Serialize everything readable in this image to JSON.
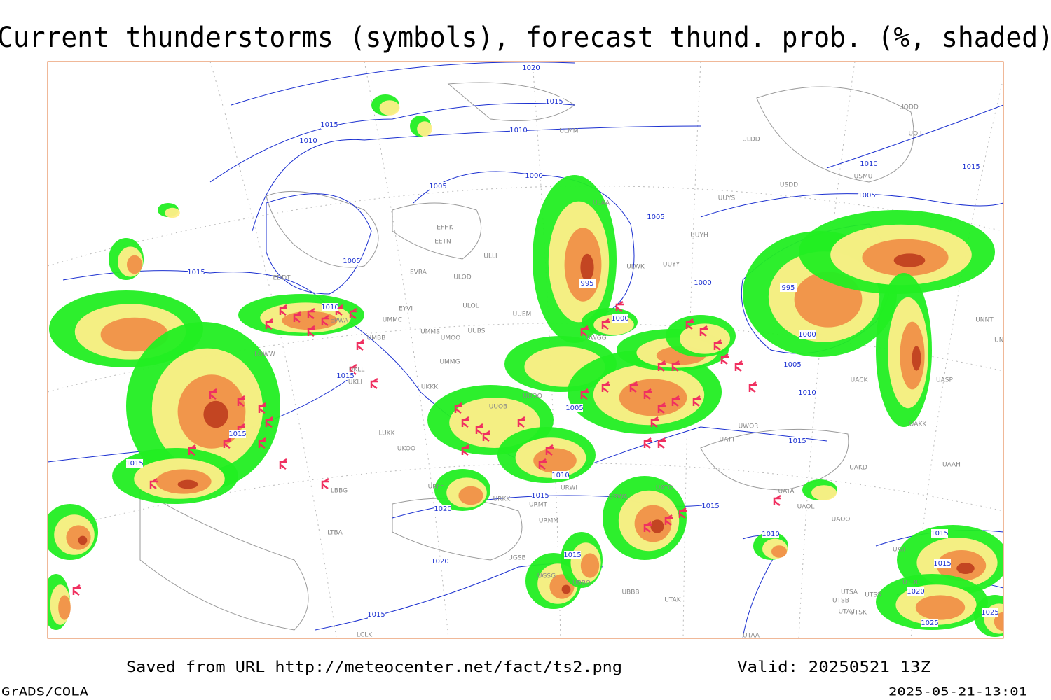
{
  "title": "Current thunderstorms (symbols), forecast thund. prob. (%, shaded)",
  "isobar_labels": [
    1020,
    1015,
    1015,
    1010,
    1010,
    1005,
    1000,
    1005,
    1005,
    1010,
    1015,
    1015,
    1005,
    995,
    1000,
    995,
    1000,
    1010,
    1000,
    1005,
    1010,
    1015,
    1005,
    1015,
    1015,
    1015,
    1010,
    1015,
    1020,
    1015,
    1010,
    1015,
    1020,
    1015,
    1015,
    1015,
    1020,
    1025,
    1025
  ],
  "stations": [
    "ULMM",
    "ULDD",
    "UODD",
    "UOII",
    "USMU",
    "USDD",
    "UUYS",
    "ULAA",
    "UUYH",
    "ULWK",
    "UUYY",
    "ULOD",
    "ULOL",
    "UUEM",
    "UMMS",
    "UUBS",
    "UMOO",
    "UMMG",
    "EETN",
    "EFHK",
    "EVRA",
    "EYVI",
    "UMMC",
    "UMBB",
    "UKLL",
    "UKLI",
    "UKKK",
    "UUOB",
    "UUOO",
    "LUKK",
    "UKOO",
    "UKFF",
    "URKK",
    "URMT",
    "URWI",
    "URWA",
    "URMM",
    "UBBB",
    "UGSB",
    "UGSG",
    "UBBQ",
    "LBBG",
    "LTBA",
    "LOWW",
    "UATG",
    "UATT",
    "UWOR",
    "UACK",
    "UAKK",
    "UASP",
    "UAKD",
    "UAAH",
    "UAOL",
    "UAOO",
    "UATA",
    "UTAK",
    "UTSA",
    "UTSB",
    "UTAV",
    "UTSS",
    "UTSK",
    "UAII",
    "UTDL",
    "UNNT",
    "UNBB",
    "ULLI",
    "UWGG",
    "EPWA",
    "EDDT",
    "UTAA",
    "LCLK"
  ],
  "footer": {
    "source": "Saved from URL http://meteocenter.net/fact/ts2.png",
    "valid": "Valid: 20250521 13Z",
    "software": "GrADS/COLA",
    "timestamp": "2025-05-21-13:01"
  }
}
